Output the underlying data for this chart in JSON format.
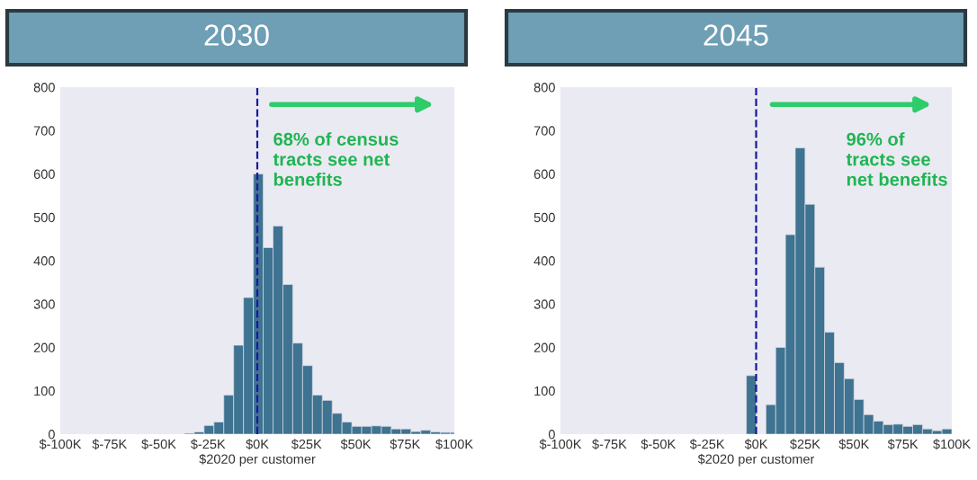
{
  "chart_data": [
    {
      "type": "histogram",
      "title": "2030",
      "xlabel": "$2020 per customer",
      "bins": [
        -37,
        -32,
        -27,
        -22,
        -17,
        -12,
        -7,
        -2,
        3,
        8,
        13,
        18,
        23,
        28,
        33,
        38,
        43,
        48,
        53,
        58,
        63,
        68,
        73,
        78,
        83,
        88,
        93,
        98,
        100
      ],
      "values": [
        2,
        5,
        20,
        28,
        90,
        205,
        315,
        600,
        430,
        480,
        345,
        210,
        158,
        90,
        78,
        48,
        28,
        18,
        18,
        19,
        18,
        12,
        12,
        6,
        9,
        5,
        4,
        4
      ],
      "color": "#3e7391",
      "xlim": [
        -100,
        100
      ],
      "xticks": [
        {
          "value": -100,
          "label": "$-100K"
        },
        {
          "value": -75,
          "label": "$-75K"
        },
        {
          "value": -50,
          "label": "$-50K"
        },
        {
          "value": -25,
          "label": "$-25K"
        },
        {
          "value": 0,
          "label": "$0K"
        },
        {
          "value": 25,
          "label": "$25K"
        },
        {
          "value": 50,
          "label": "$50K"
        },
        {
          "value": 75,
          "label": "$75K"
        },
        {
          "value": 100,
          "label": "$100K"
        }
      ],
      "ylim": [
        0,
        800
      ],
      "yticks": [
        0,
        100,
        200,
        300,
        400,
        500,
        600,
        700,
        800
      ],
      "ref_lines": [
        {
          "axis": "x",
          "value": 0,
          "color": "#1a1a9a",
          "line_style": "dashed"
        }
      ],
      "annotations": [
        "68% of census\ntracts see net\nbenefits"
      ],
      "grid": false
    },
    {
      "type": "histogram",
      "title": "2045",
      "xlabel": "$2020 per customer",
      "bins": [
        -5,
        0,
        5,
        10,
        15,
        20,
        25,
        30,
        35,
        40,
        45,
        50,
        55,
        60,
        65,
        70,
        75,
        80,
        85,
        90,
        95,
        100
      ],
      "values": [
        135,
        0,
        68,
        200,
        460,
        660,
        530,
        385,
        235,
        165,
        128,
        80,
        45,
        30,
        22,
        23,
        18,
        22,
        12,
        8,
        12
      ],
      "color": "#3e7391",
      "xlim": [
        -100,
        100
      ],
      "xticks": [
        {
          "value": -100,
          "label": "$-100K"
        },
        {
          "value": -75,
          "label": "$-75K"
        },
        {
          "value": -50,
          "label": "$-50K"
        },
        {
          "value": -25,
          "label": "$-25K"
        },
        {
          "value": 0,
          "label": "$0K"
        },
        {
          "value": 25,
          "label": "$25K"
        },
        {
          "value": 50,
          "label": "$50K"
        },
        {
          "value": 75,
          "label": "$75K"
        },
        {
          "value": 100,
          "label": "$100K"
        }
      ],
      "ylim": [
        0,
        800
      ],
      "yticks": [
        0,
        100,
        200,
        300,
        400,
        500,
        600,
        700,
        800
      ],
      "ref_lines": [
        {
          "axis": "x",
          "value": 0,
          "color": "#1a1a9a",
          "line_style": "dashed"
        }
      ],
      "annotations": [
        "96% of\ntracts see\nnet benefits"
      ],
      "grid": false
    }
  ]
}
